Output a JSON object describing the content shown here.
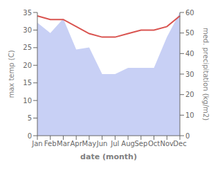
{
  "chart_data": {
    "type": "line",
    "xlabel": "date (month)",
    "ylabel": "max temp (C)",
    "y2label": "med. precipitation (kg/m2)",
    "categories": [
      "Jan",
      "Feb",
      "Mar",
      "Apr",
      "May",
      "Jun",
      "Jul",
      "Aug",
      "Sep",
      "Oct",
      "Nov",
      "Dec"
    ],
    "series": [
      {
        "type": "area",
        "axis": "y2",
        "color": "#c8d0f5",
        "values": [
          55,
          50,
          57,
          42,
          43,
          30,
          30,
          33,
          33,
          33,
          48,
          60
        ]
      },
      {
        "type": "line",
        "axis": "y",
        "color": "#d9534f",
        "values": [
          34,
          33,
          33,
          31,
          29,
          28,
          28,
          29,
          30,
          30,
          31,
          34
        ]
      }
    ],
    "ylim": [
      0,
      35
    ],
    "yticks": [
      0,
      5,
      10,
      15,
      20,
      25,
      30,
      35
    ],
    "y2lim": [
      0,
      60
    ],
    "y2ticks": [
      0,
      10,
      20,
      30,
      40,
      50,
      60
    ],
    "grid": false
  }
}
